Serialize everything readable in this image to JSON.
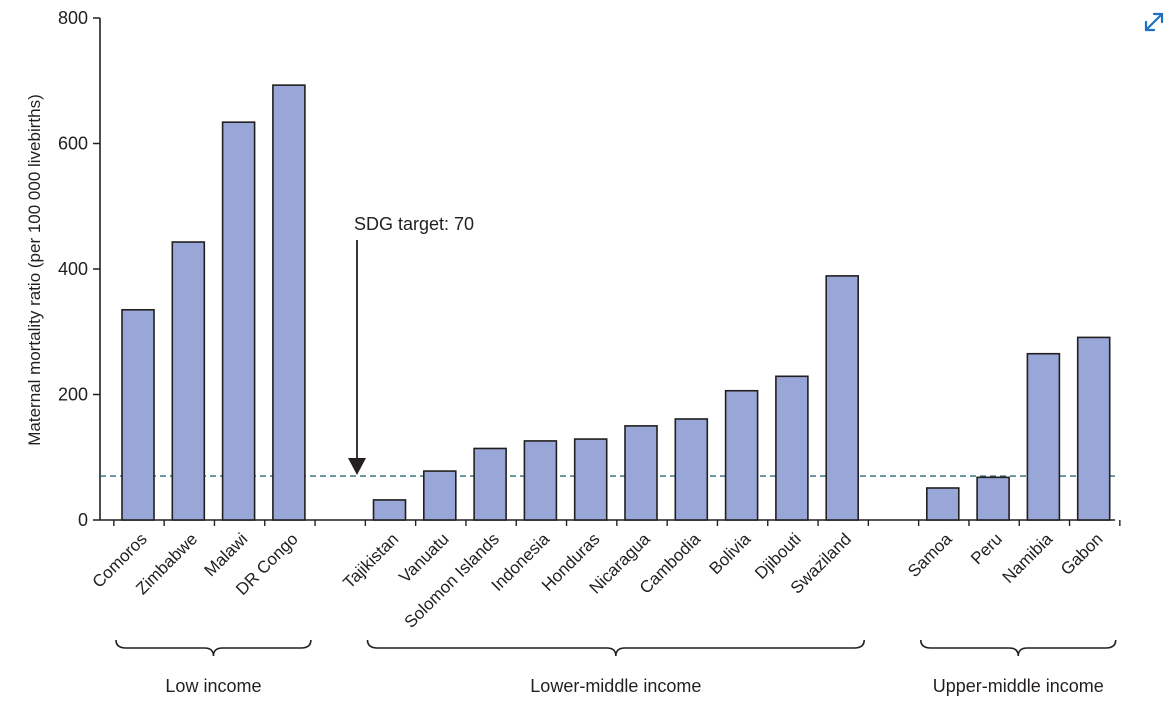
{
  "chart_data": {
    "type": "bar",
    "ylabel": "Maternal mortality ratio (per 100 000 livebirths)",
    "xlabel": "",
    "ylim": [
      0,
      800
    ],
    "yticks": [
      0,
      200,
      400,
      600,
      800
    ],
    "bar_color": "#99a6d8",
    "bar_edge_color": "#231f20",
    "reference_line": {
      "value": 70,
      "color": "#2e6b7a",
      "style": "dashed"
    },
    "annotation": "SDG target: 70",
    "groups": [
      {
        "name": "Low income",
        "categories": [
          "Comoros",
          "Zimbabwe",
          "Malawi",
          "DR Congo"
        ],
        "values": [
          335,
          443,
          634,
          693
        ]
      },
      {
        "name": "Lower-middle income",
        "categories": [
          "Tajikistan",
          "Vanuatu",
          "Solomon Islands",
          "Indonesia",
          "Honduras",
          "Nicaragua",
          "Cambodia",
          "Bolivia",
          "Djibouti",
          "Swaziland"
        ],
        "values": [
          32,
          78,
          114,
          126,
          129,
          150,
          161,
          206,
          229,
          389
        ]
      },
      {
        "name": "Upper-middle income",
        "categories": [
          "Samoa",
          "Peru",
          "Namibia",
          "Gabon"
        ],
        "values": [
          51,
          68,
          265,
          291
        ]
      }
    ]
  },
  "ui": {
    "expand_icon": "expand-arrows-icon",
    "accent": "#1f6fc5"
  }
}
